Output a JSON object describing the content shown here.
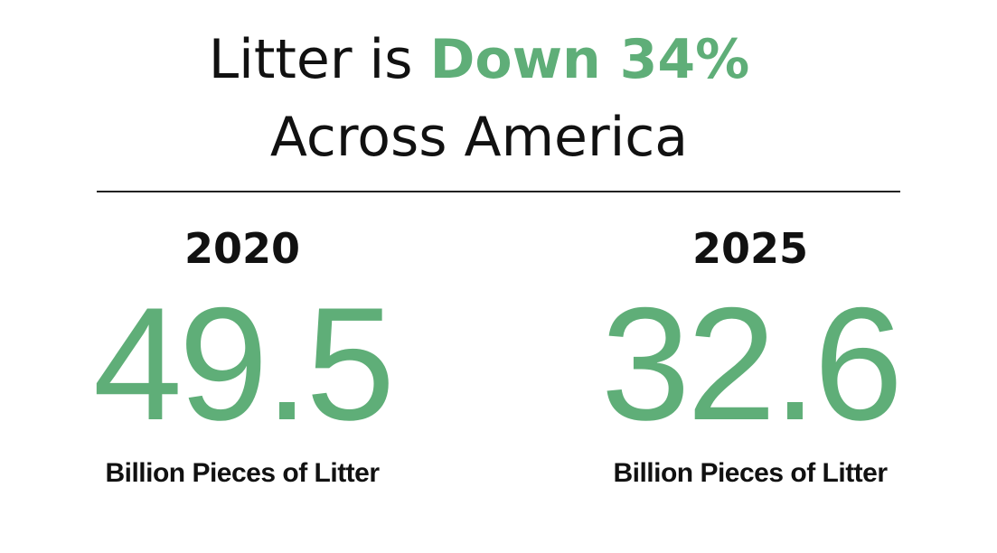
{
  "header": {
    "title_start": "Litter is",
    "title_highlight": "Down 34%",
    "title_line2": "Across America"
  },
  "stats": [
    {
      "year": "2020",
      "value": "49.5",
      "unit": "Billion Pieces of Litter"
    },
    {
      "year": "2025",
      "value": "32.6",
      "unit": "Billion Pieces of Litter"
    }
  ]
}
